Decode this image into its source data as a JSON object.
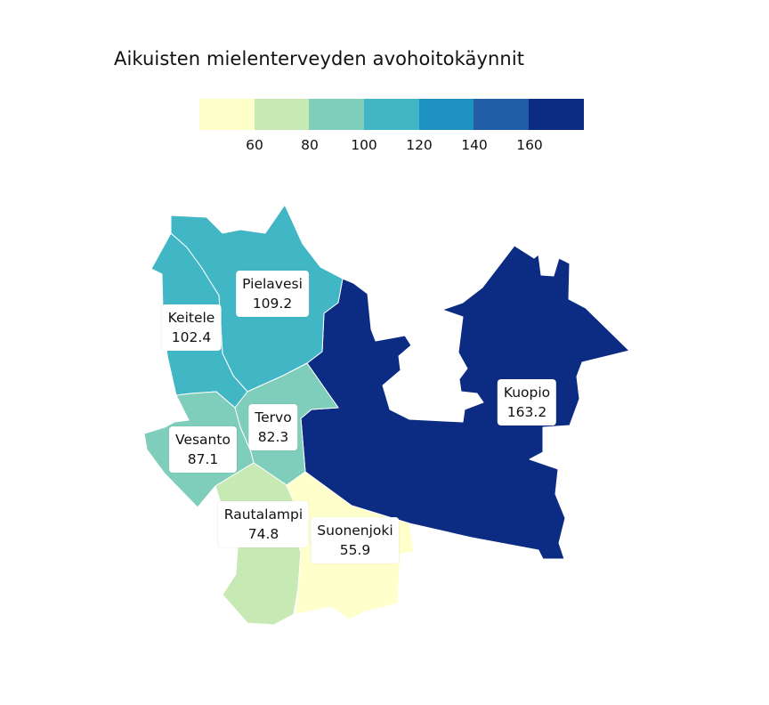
{
  "title": "Aikuisten mielenterveyden avohoitokäynnit",
  "legend": {
    "colors": [
      "#ffffcc",
      "#c7e9b4",
      "#7fcdbb",
      "#41b6c4",
      "#1d91c0",
      "#225ea8",
      "#0c2c84"
    ],
    "ticks": [
      "60",
      "80",
      "100",
      "120",
      "140",
      "160"
    ]
  },
  "regions": [
    {
      "name": "Kuopio",
      "value": "163.2",
      "color": "#0c2c84"
    },
    {
      "name": "Pielavesi",
      "value": "109.2",
      "color": "#41b6c4"
    },
    {
      "name": "Keitele",
      "value": "102.4",
      "color": "#41b6c4"
    },
    {
      "name": "Tervo",
      "value": "82.3",
      "color": "#7fcdbb"
    },
    {
      "name": "Vesanto",
      "value": "87.1",
      "color": "#7fcdbb"
    },
    {
      "name": "Rautalampi",
      "value": "74.8",
      "color": "#c7e9b4"
    },
    {
      "name": "Suonenjoki",
      "value": "55.9",
      "color": "#ffffcc"
    }
  ]
}
